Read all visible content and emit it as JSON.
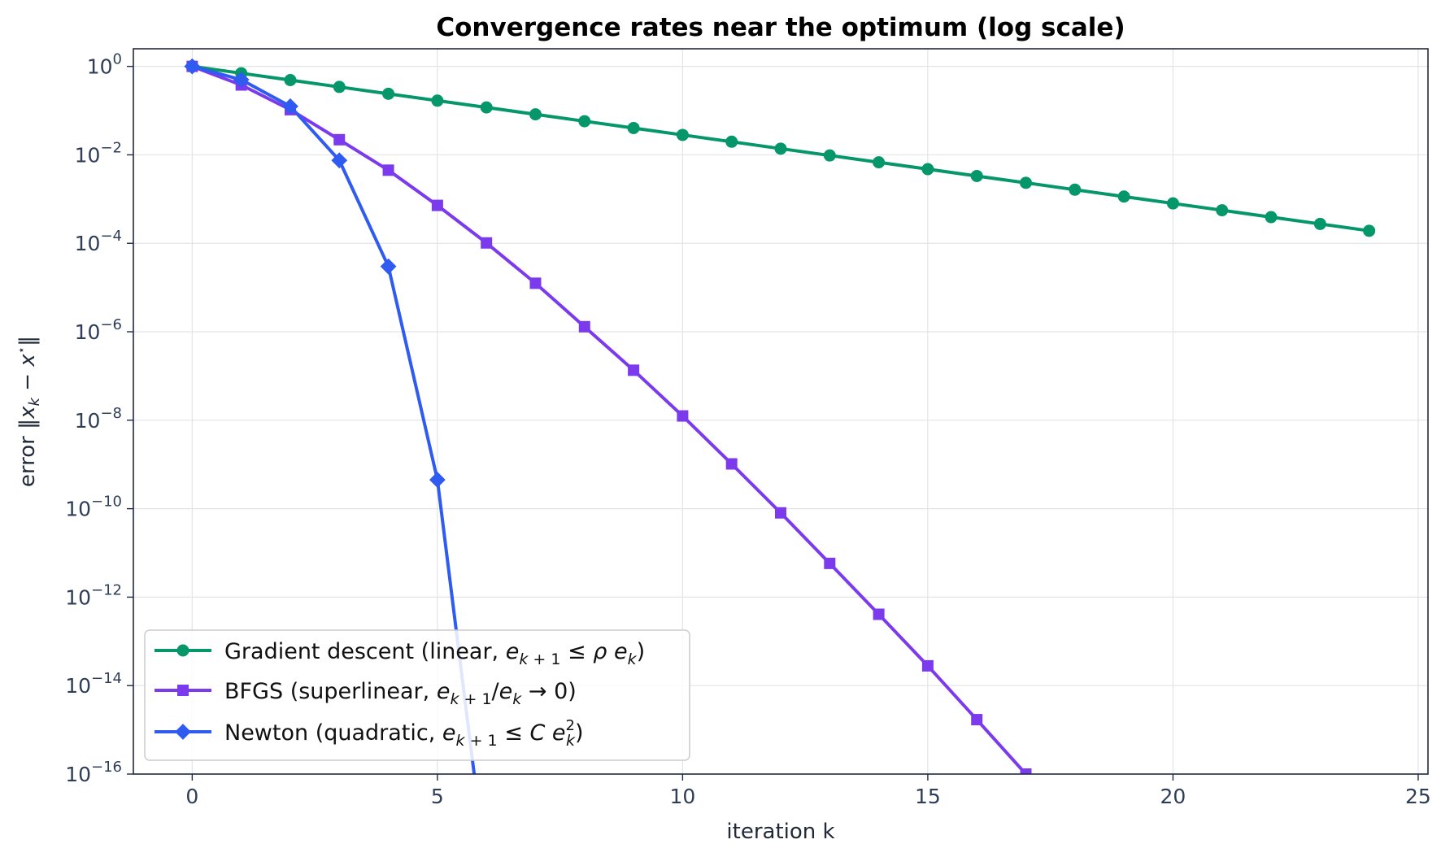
{
  "chart_data": {
    "type": "line",
    "title": "Convergence rates near the optimum (log scale)",
    "xlabel": "iteration k",
    "ylabel": "error ‖x_k − x*‖",
    "y_scale": "log",
    "xlim": [
      -1.2,
      25.2
    ],
    "ylim": [
      1e-16,
      2.5
    ],
    "grid": true,
    "legend_position": "lower-left",
    "x_ticks": [
      0,
      5,
      10,
      15,
      20,
      25
    ],
    "x_tick_labels": [
      "0",
      "5",
      "10",
      "15",
      "20",
      "25"
    ],
    "y_ticks": [
      1,
      0.01,
      0.0001,
      1e-06,
      1e-08,
      1e-10,
      1e-12,
      1e-14,
      1e-16
    ],
    "y_tick_labels": [
      {
        "base": "10",
        "exp": "0"
      },
      {
        "base": "10",
        "exp": "−2"
      },
      {
        "base": "10",
        "exp": "−4"
      },
      {
        "base": "10",
        "exp": "−6"
      },
      {
        "base": "10",
        "exp": "−8"
      },
      {
        "base": "10",
        "exp": "−10"
      },
      {
        "base": "10",
        "exp": "−12"
      },
      {
        "base": "10",
        "exp": "−14"
      },
      {
        "base": "10",
        "exp": "−16"
      }
    ],
    "series": [
      {
        "name": "Gradient descent (linear, e_{k+1} ≤ ρ e_k)",
        "color": "#059669",
        "marker": "circle",
        "x": [
          0,
          1,
          2,
          3,
          4,
          5,
          6,
          7,
          8,
          9,
          10,
          11,
          12,
          13,
          14,
          15,
          16,
          17,
          18,
          19,
          20,
          21,
          22,
          23,
          24
        ],
        "y": [
          1,
          0.7,
          0.49,
          0.343,
          0.24,
          0.168,
          0.118,
          0.0824,
          0.0576,
          0.0404,
          0.0282,
          0.0198,
          0.0138,
          0.00969,
          0.00678,
          0.00475,
          0.00332,
          0.00233,
          0.00163,
          0.00114,
          0.000798,
          0.000559,
          0.000391,
          0.000274,
          0.000192
        ]
      },
      {
        "name": "BFGS (superlinear, e_{k+1}/e_k → 0)",
        "color": "#7c3aed",
        "marker": "square",
        "x": [
          0,
          1,
          2,
          3,
          4,
          5,
          6,
          7,
          8,
          9,
          10,
          11,
          12,
          13,
          14,
          15,
          16,
          17
        ],
        "y": [
          1,
          0.38,
          0.105,
          0.022,
          0.0045,
          0.00072,
          0.000102,
          1.25e-05,
          1.3e-06,
          1.35e-07,
          1.25e-08,
          1.03e-09,
          8.05e-11,
          5.8e-12,
          4.1e-13,
          2.8e-14,
          1.7e-15,
          1e-16
        ]
      },
      {
        "name": "Newton (quadratic, e_{k+1} ≤ C e_k²)",
        "color": "#2f5bf0",
        "marker": "diamond",
        "x": [
          0,
          1,
          2,
          3,
          4,
          5,
          5.75
        ],
        "y": [
          1,
          0.5,
          0.125,
          0.0075,
          3e-05,
          4.5e-10,
          1e-16
        ]
      }
    ]
  }
}
